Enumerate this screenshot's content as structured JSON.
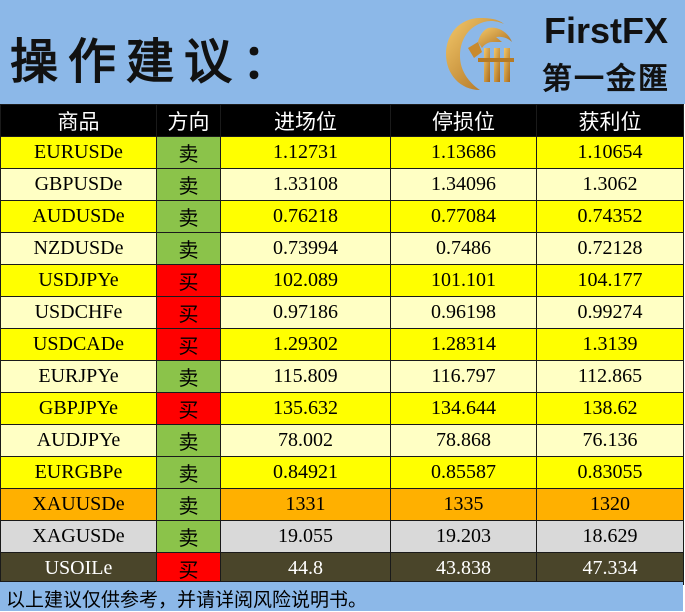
{
  "header": {
    "title": "操作建议：",
    "brand_en": "FirstFX",
    "brand_cn": "第一金匯",
    "logo_icon": "dragon-logo-icon",
    "background_color": "#8cb8e8"
  },
  "table": {
    "columns": [
      "商品",
      "方向",
      "进场位",
      "停损位",
      "获利位"
    ],
    "rows": [
      {
        "symbol": "EURUSDe",
        "direction": "卖",
        "side": "sell",
        "entry": "1.12731",
        "stop": "1.13686",
        "target": "1.10654",
        "row_color": "#ffff00"
      },
      {
        "symbol": "GBPUSDe",
        "direction": "卖",
        "side": "sell",
        "entry": "1.33108",
        "stop": "1.34096",
        "target": "1.3062",
        "row_color": "#ffffc4"
      },
      {
        "symbol": "AUDUSDe",
        "direction": "卖",
        "side": "sell",
        "entry": "0.76218",
        "stop": "0.77084",
        "target": "0.74352",
        "row_color": "#ffff00"
      },
      {
        "symbol": "NZDUSDe",
        "direction": "卖",
        "side": "sell",
        "entry": "0.73994",
        "stop": "0.7486",
        "target": "0.72128",
        "row_color": "#ffffc4"
      },
      {
        "symbol": "USDJPYe",
        "direction": "买",
        "side": "buy",
        "entry": "102.089",
        "stop": "101.101",
        "target": "104.177",
        "row_color": "#ffff00"
      },
      {
        "symbol": "USDCHFe",
        "direction": "买",
        "side": "buy",
        "entry": "0.97186",
        "stop": "0.96198",
        "target": "0.99274",
        "row_color": "#ffffc4"
      },
      {
        "symbol": "USDCADe",
        "direction": "买",
        "side": "buy",
        "entry": "1.29302",
        "stop": "1.28314",
        "target": "1.3139",
        "row_color": "#ffff00"
      },
      {
        "symbol": "EURJPYe",
        "direction": "卖",
        "side": "sell",
        "entry": "115.809",
        "stop": "116.797",
        "target": "112.865",
        "row_color": "#ffffc4"
      },
      {
        "symbol": "GBPJPYe",
        "direction": "买",
        "side": "buy",
        "entry": "135.632",
        "stop": "134.644",
        "target": "138.62",
        "row_color": "#ffff00"
      },
      {
        "symbol": "AUDJPYe",
        "direction": "卖",
        "side": "sell",
        "entry": "78.002",
        "stop": "78.868",
        "target": "76.136",
        "row_color": "#ffffc4"
      },
      {
        "symbol": "EURGBPe",
        "direction": "卖",
        "side": "sell",
        "entry": "0.84921",
        "stop": "0.85587",
        "target": "0.83055",
        "row_color": "#ffff00"
      },
      {
        "symbol": "XAUUSDe",
        "direction": "卖",
        "side": "sell",
        "entry": "1331",
        "stop": "1335",
        "target": "1320",
        "row_color": "#ffb000"
      },
      {
        "symbol": "XAGUSDe",
        "direction": "卖",
        "side": "sell",
        "entry": "19.055",
        "stop": "19.203",
        "target": "18.629",
        "row_color": "#d9d9d9"
      },
      {
        "symbol": "USOILe",
        "direction": "买",
        "side": "buy",
        "entry": "44.8",
        "stop": "43.838",
        "target": "47.334",
        "row_color": "#4a452a",
        "text_color": "#ffffff"
      }
    ]
  },
  "footer": {
    "disclaimer": "以上建议仅供参考，并请详阅风险说明书。"
  }
}
